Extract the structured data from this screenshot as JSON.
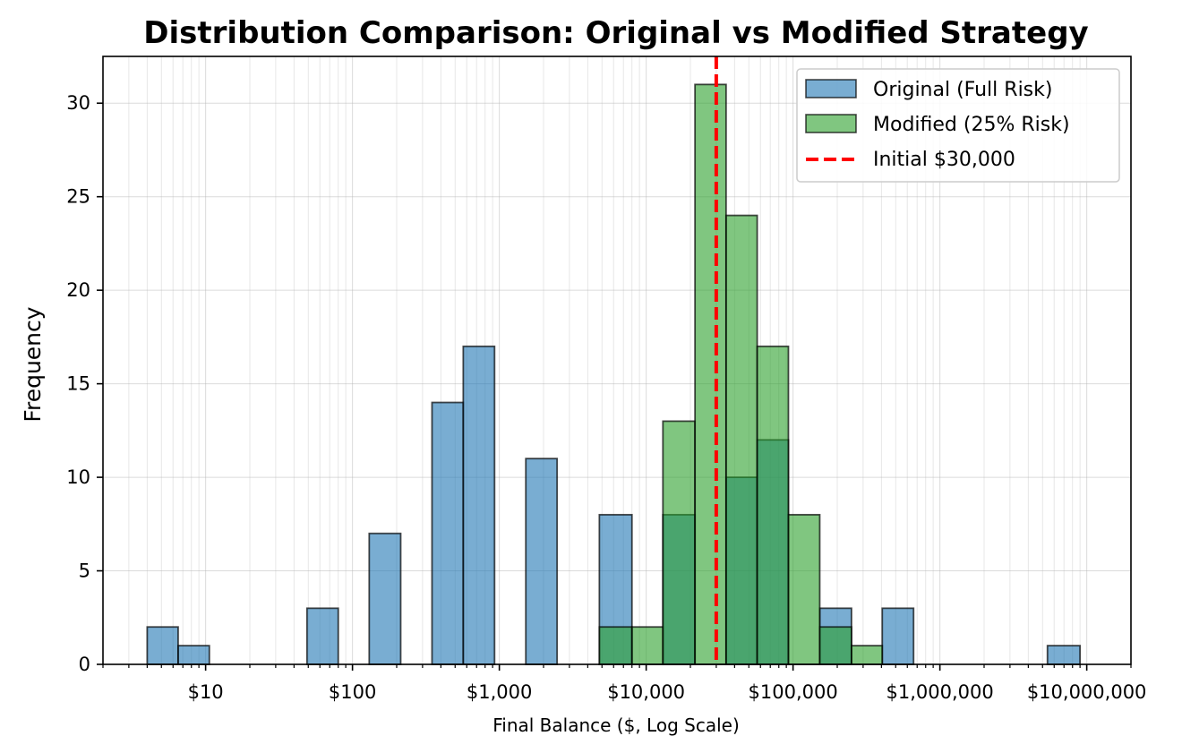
{
  "chart_data": {
    "type": "bar",
    "title": "Distribution Comparison: Original vs Modified Strategy",
    "xlabel": "Final Balance ($, Log Scale)",
    "ylabel": "Frequency",
    "x_scale": "log",
    "xlim": [
      2,
      20000000
    ],
    "ylim": [
      0,
      32.5
    ],
    "grid": true,
    "legend_position": "top-right",
    "x_ticks": [
      {
        "value": 10,
        "label": "$10"
      },
      {
        "value": 100,
        "label": "$100"
      },
      {
        "value": 1000,
        "label": "$1,000"
      },
      {
        "value": 10000,
        "label": "$10,000"
      },
      {
        "value": 100000,
        "label": "$100,000"
      },
      {
        "value": 1000000,
        "label": "$1,000,000"
      },
      {
        "value": 10000000,
        "label": "$10,000,000"
      }
    ],
    "y_ticks": [
      {
        "value": 0,
        "label": "0"
      },
      {
        "value": 5,
        "label": "5"
      },
      {
        "value": 10,
        "label": "10"
      },
      {
        "value": 15,
        "label": "15"
      },
      {
        "value": 20,
        "label": "20"
      },
      {
        "value": 25,
        "label": "25"
      },
      {
        "value": 30,
        "label": "30"
      }
    ],
    "series": [
      {
        "name": "Original (Full Risk)",
        "color": "#1f77b4",
        "bins": [
          {
            "x0": 4,
            "x1": 6.5,
            "count": 2
          },
          {
            "x0": 6.5,
            "x1": 10.6,
            "count": 1
          },
          {
            "x0": 49,
            "x1": 80,
            "count": 3
          },
          {
            "x0": 130,
            "x1": 213,
            "count": 7
          },
          {
            "x0": 348,
            "x1": 568,
            "count": 14
          },
          {
            "x0": 568,
            "x1": 928,
            "count": 17
          },
          {
            "x0": 1515,
            "x1": 2475,
            "count": 11
          },
          {
            "x0": 4800,
            "x1": 8000,
            "count": 8
          },
          {
            "x0": 13000,
            "x1": 21500,
            "count": 8
          },
          {
            "x0": 35000,
            "x1": 57000,
            "count": 10
          },
          {
            "x0": 57000,
            "x1": 93000,
            "count": 12
          },
          {
            "x0": 152000,
            "x1": 250000,
            "count": 3
          },
          {
            "x0": 405000,
            "x1": 662000,
            "count": 3
          },
          {
            "x0": 5400000,
            "x1": 9000000,
            "count": 1
          }
        ]
      },
      {
        "name": "Modified (25% Risk)",
        "color": "#2ca02c",
        "bins": [
          {
            "x0": 4800,
            "x1": 8000,
            "count": 2
          },
          {
            "x0": 8000,
            "x1": 13000,
            "count": 2
          },
          {
            "x0": 13000,
            "x1": 21500,
            "count": 13
          },
          {
            "x0": 21500,
            "x1": 35000,
            "count": 31
          },
          {
            "x0": 35000,
            "x1": 57000,
            "count": 24
          },
          {
            "x0": 57000,
            "x1": 93000,
            "count": 17
          },
          {
            "x0": 93000,
            "x1": 152000,
            "count": 8
          },
          {
            "x0": 152000,
            "x1": 250000,
            "count": 2
          },
          {
            "x0": 250000,
            "x1": 405000,
            "count": 1
          }
        ]
      }
    ],
    "reference_line": {
      "name": "Initial $30,000",
      "x": 30000,
      "color": "#ff0000",
      "style": "dashed"
    }
  }
}
